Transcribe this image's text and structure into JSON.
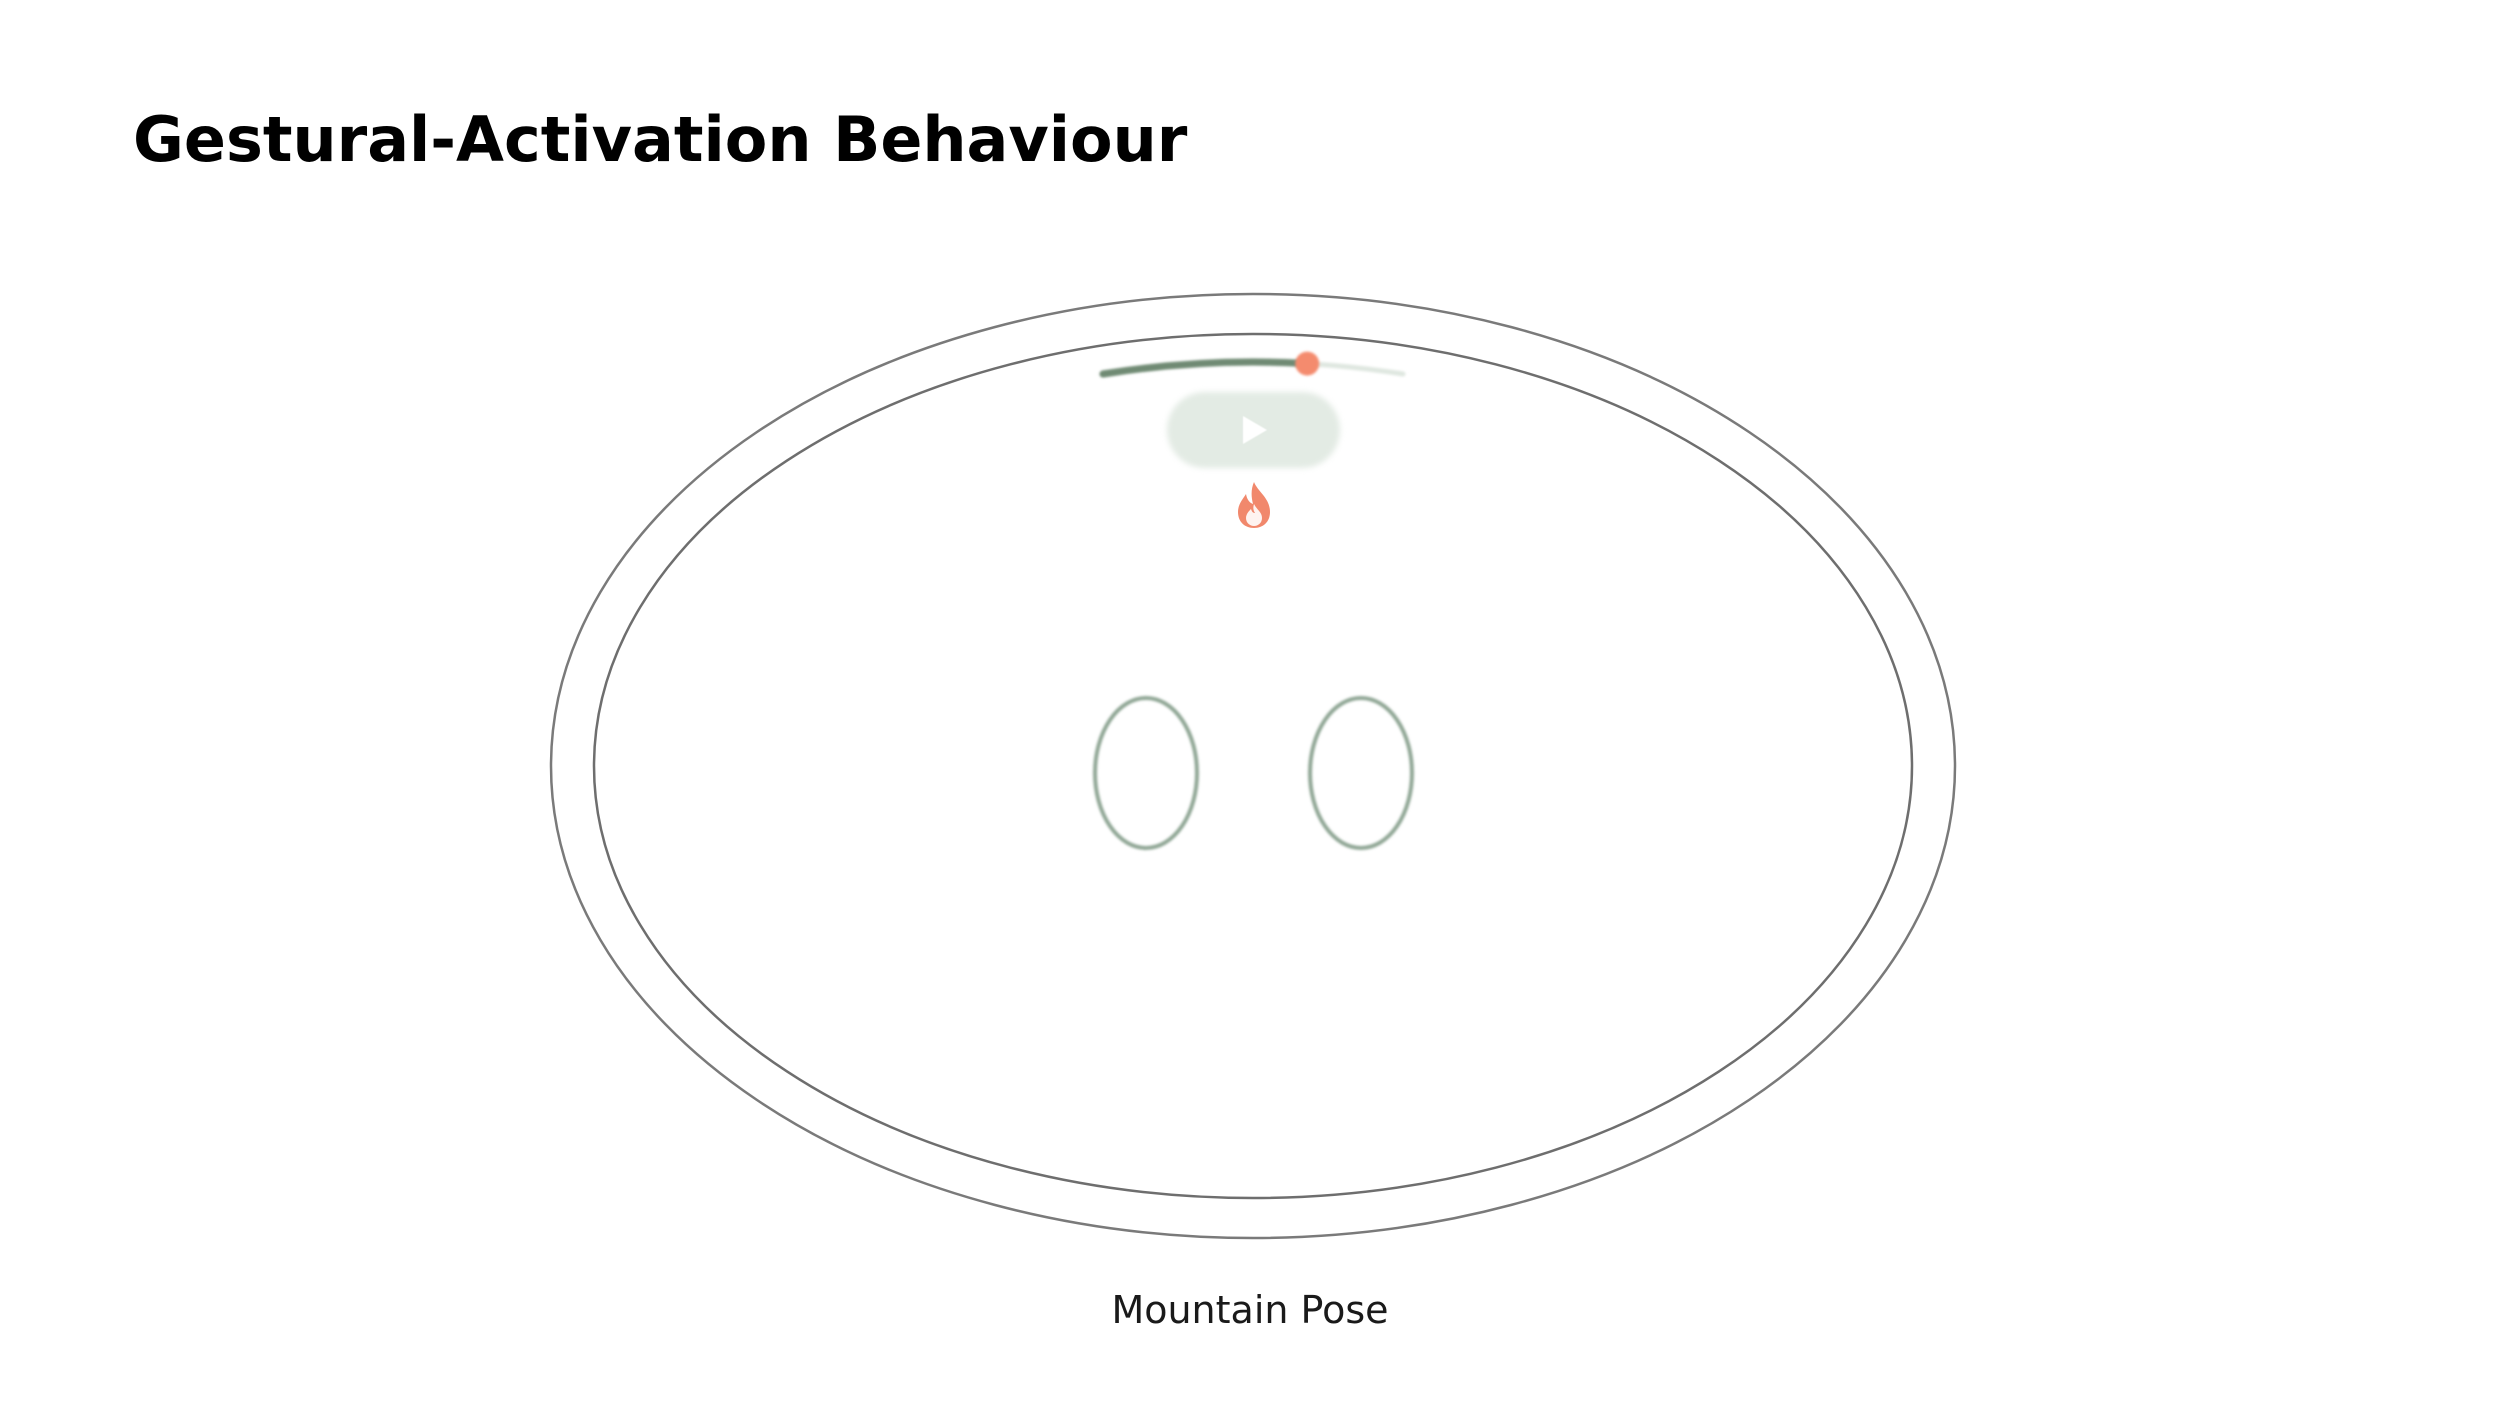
{
  "slide": {
    "title": "Gestural-Activation Behaviour",
    "caption": "Mountain Pose"
  },
  "device": {
    "outer_ring_color": "#7a7a7a",
    "inner_ring_color": "#6e6e6e",
    "progress": {
      "value": 0.68,
      "track_color": "#dfe7e0",
      "fill_color": "#6f8a73",
      "thumb_color": "#f48b6e"
    },
    "play_button": {
      "icon": "play-icon",
      "background_color": "#e3ebe4"
    },
    "streak_icon": {
      "icon": "flame-icon",
      "color": "#ef7b5c"
    },
    "eyes": {
      "stroke_color": "#8fa694"
    }
  }
}
